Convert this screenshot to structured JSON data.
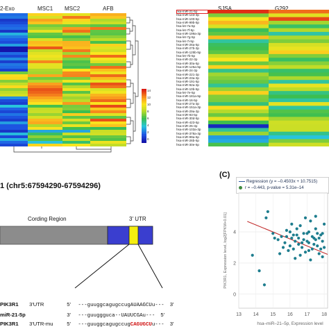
{
  "panel_a": {
    "left_heatmap": {
      "column_labels": [
        "2-Exo",
        "MSC1",
        "MSC2",
        "AFB"
      ],
      "color_scale_ticks": [
        "14",
        "12",
        "10",
        "8",
        "6",
        "4",
        "2",
        "0"
      ]
    },
    "right_heatmap": {
      "column_labels": [
        "SJSA",
        "G292"
      ],
      "row_labels": [
        "hsa-miR-21-5p",
        "hsa-miR-143-3p",
        "hsa-miR-100-5p",
        "hsa-miR-99b-5p",
        "hsa-let-7a-5p",
        "hsa-let-7f-5p",
        "hsa-miR-199a-3p",
        "hsa-let-7g-5p",
        "hsa-let-7i-5p",
        "hsa-miR-26a-5p",
        "hsa-miR-27b-3p",
        "hsa-miR-125b-5p",
        "hsa-let-7b-5p",
        "hsa-miR-22-3p",
        "hsa-miR-30a-5p",
        "hsa-miR-125a-5p",
        "hsa-miR-24-3p",
        "hsa-miR-221-3p",
        "hsa-miR-23a-3p",
        "hsa-miR-191-5p",
        "hsa-miR-92a-3p",
        "hsa-miR-10b-5p",
        "hsa-let-7e-5p",
        "hsa-miR-181a-5p",
        "hsa-miR-16-5p",
        "hsa-miR-27a-3p",
        "hsa-miR-151a-3p",
        "hsa-miR-29a-3p",
        "hsa-miR-93-5p",
        "hsa-miR-30d-5p",
        "hsa-miR-423-5p",
        "hsa-miR-25-3p",
        "hsa-miR-103a-3p",
        "hsa-miR-378a-3p",
        "hsa-miR-99a-5p",
        "hsa-miR-26b-5p",
        "hsa-miR-30e-5p"
      ]
    }
  },
  "panel_b": {
    "title": "1 (chr5:67594290-67594296)",
    "coding_region_label": "Cording Region",
    "utr_label": "3' UTR",
    "sequences": [
      {
        "gene": "PIK3R1",
        "region": "3'UTR",
        "end5": "5'",
        "seq_plain": "---guuggcagugccugAUAAGCU",
        "seq_red": "",
        "seq_tail": "u---",
        "end3": "3'"
      },
      {
        "gene": "miR-21-5p",
        "region": "",
        "end5": "3'",
        "seq_plain": "---guuggguca--UAUUCGAu",
        "seq_red": "",
        "seq_tail": "---",
        "end3": "5'"
      },
      {
        "gene": "PIK3R1",
        "region": "3'UTR-mu",
        "end5": "5'",
        "seq_plain": "---guuggcagugccug",
        "seq_red": "CAGUGCU",
        "seq_tail": "u---",
        "end3": "3'"
      }
    ]
  },
  "panel_c": {
    "label": "(C)",
    "legend_regression": "Regression (y = –0.4503x + 10.7515)",
    "legend_stats": "r = –0.443, p-value = 5.31e–14",
    "chart_data": {
      "type": "scatter",
      "x_ticks": [
        "13",
        "14",
        "15",
        "16",
        "17",
        "18"
      ],
      "y_ticks": [
        "0",
        "2",
        "4"
      ],
      "xlabel": "hsa–miR–21–5p, Expression level",
      "ylabel": "PIK3R1, Expression level, log2[FPKM+0.01]",
      "xlim": [
        13,
        18.2
      ],
      "ylim": [
        -0.9,
        6.5
      ],
      "regression": {
        "slope": -0.4503,
        "intercept": 10.7515
      },
      "points": [
        [
          13.8,
          2.5
        ],
        [
          14.2,
          1.5
        ],
        [
          14.5,
          0.6
        ],
        [
          14.6,
          4.9
        ],
        [
          14.7,
          5.3
        ],
        [
          15.0,
          3.9
        ],
        [
          15.1,
          3.6
        ],
        [
          15.3,
          3.5
        ],
        [
          15.5,
          3.7
        ],
        [
          15.6,
          3.0
        ],
        [
          15.7,
          3.3
        ],
        [
          15.8,
          4.1
        ],
        [
          15.9,
          2.8
        ],
        [
          16.0,
          3.1
        ],
        [
          16.1,
          3.6
        ],
        [
          16.2,
          2.9
        ],
        [
          16.3,
          3.4
        ],
        [
          16.4,
          3.8
        ],
        [
          16.5,
          3.2
        ],
        [
          16.6,
          4.4
        ],
        [
          16.7,
          3.0
        ],
        [
          16.8,
          3.5
        ],
        [
          16.9,
          2.7
        ],
        [
          17.0,
          3.9
        ],
        [
          17.1,
          3.3
        ],
        [
          17.2,
          4.7
        ],
        [
          17.3,
          2.9
        ],
        [
          17.4,
          3.6
        ],
        [
          17.5,
          4.2
        ],
        [
          17.6,
          3.1
        ],
        [
          17.7,
          2.6
        ],
        [
          17.8,
          3.8
        ],
        [
          17.9,
          3.4
        ],
        [
          18.0,
          3.0
        ],
        [
          16.1,
          4.5
        ],
        [
          16.4,
          4.2
        ],
        [
          16.8,
          3.9
        ],
        [
          17.1,
          4.0
        ],
        [
          17.4,
          3.2
        ],
        [
          17.7,
          3.6
        ],
        [
          15.4,
          2.6
        ],
        [
          16.6,
          2.5
        ],
        [
          17.2,
          2.2
        ],
        [
          17.9,
          2.4
        ],
        [
          18.0,
          4.5
        ],
        [
          17.5,
          5.0
        ],
        [
          16.9,
          4.9
        ],
        [
          16.3,
          2.3
        ],
        [
          15.8,
          3.7
        ],
        [
          17.0,
          3.4
        ],
        [
          17.6,
          3.9
        ],
        [
          16.5,
          3.6
        ],
        [
          16.0,
          4.0
        ],
        [
          17.3,
          3.7
        ],
        [
          17.8,
          2.9
        ],
        [
          16.7,
          3.3
        ],
        [
          17.1,
          2.8
        ],
        [
          16.2,
          3.8
        ],
        [
          17.5,
          3.5
        ],
        [
          17.9,
          3.9
        ]
      ]
    }
  },
  "colors": {
    "gene_body": "#8c8c8c",
    "utr_blue": "#3a3ecf",
    "seed_yellow": "#f5ee10",
    "point_teal": "#1e7d8e",
    "regression_red": "#c22d2d",
    "seq_red": "#d01010"
  }
}
